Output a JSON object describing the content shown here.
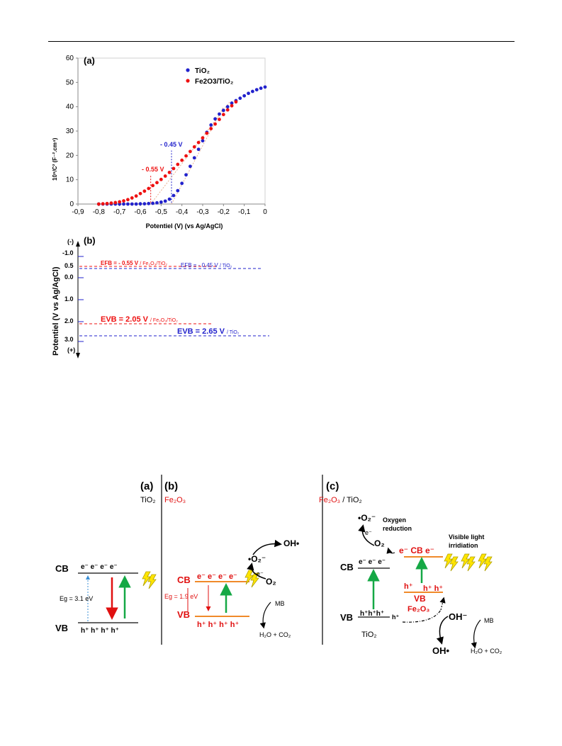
{
  "figure1": {
    "panel_a": {
      "label": "(a)",
      "ylabel": "10⁹/C² (F⁻².cm⁴)",
      "xlabel": "Potentiel (V) (vs Ag/AgCl)",
      "legend": [
        "TiO₂",
        "Fe2O3/TiO₂"
      ],
      "annot_tio2": "- 0.45 V",
      "annot_fe": "- 0.55 V"
    },
    "panel_b": {
      "label": "(b)",
      "ylabel": "Potentiel (V vs Ag/AgCl)",
      "minus": "(-)",
      "plus": "(+)",
      "ticks": [
        "-1.0",
        "0.0",
        "1.0",
        "2.0",
        "3.0"
      ],
      "efb_fe": "EFB = - 0.55 V",
      "efb_fe_sub": "/ Fe₂O₃/TiO₂",
      "efb_tio2": "EFB = - 0.45 V",
      "efb_tio2_sub": "/ TiO₂",
      "evb_fe": "EVB = 2.05 V",
      "evb_fe_sub": "/ Fe₂O₃/TiO₂",
      "evb_tio2": "EVB = 2.65 V",
      "evb_tio2_sub": "/ TiO₂",
      "tick_0_5": "0.5"
    }
  },
  "chart_data": {
    "type": "scatter",
    "xlabel": "Potentiel (V) (vs Ag/AgCl)",
    "ylabel": "10⁹/C² (F⁻².cm⁴)",
    "xlim": [
      -0.9,
      0
    ],
    "ylim": [
      0,
      60
    ],
    "xticks": [
      "-0,9",
      "-0,8",
      "-0,7",
      "-0,6",
      "-0,5",
      "-0,4",
      "-0,3",
      "-0,2",
      "-0,1",
      "0"
    ],
    "yticks": [
      "0",
      "10",
      "20",
      "30",
      "40",
      "50",
      "60"
    ],
    "legend_position": "top-center",
    "series": [
      {
        "name": "TiO₂",
        "color": "#2222cc",
        "x": [
          -0.8,
          -0.78,
          -0.76,
          -0.74,
          -0.72,
          -0.7,
          -0.68,
          -0.66,
          -0.64,
          -0.62,
          -0.6,
          -0.58,
          -0.56,
          -0.54,
          -0.52,
          -0.5,
          -0.48,
          -0.46,
          -0.44,
          -0.42,
          -0.4,
          -0.38,
          -0.36,
          -0.34,
          -0.32,
          -0.3,
          -0.28,
          -0.26,
          -0.24,
          -0.22,
          -0.2,
          -0.18,
          -0.16,
          -0.14,
          -0.12,
          -0.1,
          -0.08,
          -0.06,
          -0.04,
          -0.02,
          0.0
        ],
        "y": [
          0,
          0,
          0,
          0,
          0,
          0,
          0,
          0,
          0,
          0,
          0.1,
          0.1,
          0.2,
          0.3,
          0.5,
          0.8,
          1.2,
          2,
          3.5,
          5.5,
          8.5,
          12,
          15.5,
          19,
          22.5,
          26,
          29.5,
          32.5,
          35,
          37,
          38.5,
          40,
          41.5,
          42.5,
          43.5,
          44.5,
          45.5,
          46.3,
          47,
          47.6,
          48.1
        ]
      },
      {
        "name": "Fe2O3/TiO₂",
        "color": "#ee1111",
        "x": [
          -0.8,
          -0.78,
          -0.76,
          -0.74,
          -0.72,
          -0.7,
          -0.68,
          -0.66,
          -0.64,
          -0.62,
          -0.6,
          -0.58,
          -0.56,
          -0.54,
          -0.52,
          -0.5,
          -0.48,
          -0.46,
          -0.44,
          -0.42,
          -0.4,
          -0.38,
          -0.36,
          -0.34,
          -0.32,
          -0.3,
          -0.28,
          -0.26,
          -0.24,
          -0.22,
          -0.2,
          -0.18,
          -0.16,
          -0.14
        ],
        "y": [
          0,
          0.1,
          0.2,
          0.4,
          0.6,
          0.9,
          1.3,
          1.8,
          2.5,
          3.3,
          4.3,
          5.3,
          6.4,
          7.6,
          8.8,
          10.1,
          11.5,
          13,
          14.6,
          16.3,
          18,
          19.8,
          21.6,
          23.5,
          25.3,
          27.2,
          29.1,
          31,
          32.9,
          34.8,
          36.8,
          38.7,
          40.4,
          42
        ]
      }
    ]
  },
  "figure2": {
    "a": {
      "label": "(a)",
      "material": "TiO₂",
      "cb": "CB",
      "vb": "VB",
      "eg": "Eg = 3.1 eV",
      "electrons": "e⁻  e⁻  e⁻  e⁻",
      "holes": "h⁺  h⁺  h⁺  h⁺"
    },
    "b": {
      "label": "(b)",
      "material": "Fe₂O₃",
      "cb": "CB",
      "vb": "VB",
      "eg": "Eg = 1.9 eV",
      "electrons": "e⁻ e⁻ e⁻ e⁻",
      "holes": "h⁺ h⁺ h⁺ h⁺",
      "oh": "OH•",
      "o2m": "•O₂⁻",
      "e": "e⁻",
      "o2": "O₂",
      "mb": "MB",
      "products": "H₂O + CO₂"
    },
    "c": {
      "label": "(c)",
      "material_fe": "Fe₂O₃",
      "material_ti": " / TiO₂",
      "o2m": "•O₂⁻",
      "oxygen_reduction_1": "Oxygen",
      "oxygen_reduction_2": "reduction",
      "e": "e⁻",
      "o2": "O₂",
      "visible_1": "Visible light",
      "visible_2": "irridiation",
      "cb_tio2": "CB",
      "tio2_electrons": "e⁻   e⁻   e⁻",
      "fe_cb_line": "e⁻ CB e⁻",
      "fe_holes": "h⁺",
      "fe_holes2": "h⁺  h⁺",
      "fe_vb": "VB",
      "fe_name": "Fe₂O₃",
      "vb_tio2": "VB",
      "tio2_holes": "h⁺h⁺h⁺",
      "h_free": "h⁺",
      "tio2_name": "TiO₂",
      "ohm": "OH⁻",
      "oh": "OH•",
      "mb": "MB",
      "products": "H₂O + CO₂"
    }
  }
}
